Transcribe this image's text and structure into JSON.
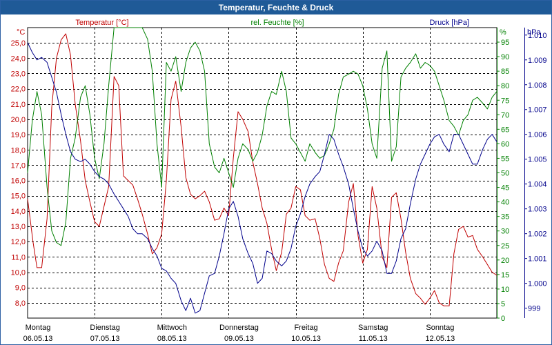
{
  "window": {
    "title": "Temperatur, Feuchte & Druck"
  },
  "colors": {
    "temperature": "#c00000",
    "humidity": "#008000",
    "pressure": "#00008b",
    "titlebar": "#1f5a97"
  },
  "chart_data": {
    "type": "line",
    "x_categories": [
      {
        "day": "Montag",
        "date": "06.05.13"
      },
      {
        "day": "Dienstag",
        "date": "07.05.13"
      },
      {
        "day": "Mittwoch",
        "date": "08.05.13"
      },
      {
        "day": "Donnerstag",
        "date": "09.05.13"
      },
      {
        "day": "Freitag",
        "date": "10.05.13"
      },
      {
        "day": "Samstag",
        "date": "11.05.13"
      },
      {
        "day": "Sonntag",
        "date": "12.05.13"
      }
    ],
    "x_range_days": [
      0,
      7
    ],
    "axes": {
      "temperature": {
        "label": "Temperatur [°C]",
        "unit": "°C",
        "range": [
          7.0,
          26.0
        ],
        "ticks": [
          "8,0",
          "9,0",
          "10,0",
          "11,0",
          "12,0",
          "13,0",
          "14,0",
          "15,0",
          "16,0",
          "17,0",
          "18,0",
          "19,0",
          "20,0",
          "21,0",
          "22,0",
          "23,0",
          "24,0",
          "25,0"
        ]
      },
      "humidity": {
        "label": "rel. Feuchte [%]",
        "unit": "%",
        "range": [
          0,
          100
        ],
        "ticks": [
          "0",
          "5",
          "10",
          "15",
          "20",
          "25",
          "30",
          "35",
          "40",
          "45",
          "50",
          "55",
          "60",
          "65",
          "70",
          "75",
          "80",
          "85",
          "90",
          "95"
        ]
      },
      "pressure": {
        "label": "Druck [hPa]",
        "unit": "hPa",
        "range": [
          998.6,
          1010.3
        ],
        "ticks": [
          "999",
          "1.000",
          "1.001",
          "1.002",
          "1.003",
          "1.004",
          "1.005",
          "1.006",
          "1.007",
          "1.008",
          "1.009",
          "1.010"
        ]
      }
    },
    "grid": true,
    "series": [
      {
        "name": "Temperatur [°C]",
        "axis": "temperature",
        "x": [
          0.0,
          0.08,
          0.14,
          0.21,
          0.29,
          0.36,
          0.43,
          0.5,
          0.57,
          0.64,
          0.71,
          0.79,
          0.86,
          0.93,
          1.0,
          1.07,
          1.14,
          1.21,
          1.29,
          1.36,
          1.43,
          1.5,
          1.57,
          1.64,
          1.71,
          1.79,
          1.86,
          1.93,
          2.0,
          2.07,
          2.14,
          2.21,
          2.29,
          2.36,
          2.43,
          2.5,
          2.57,
          2.64,
          2.71,
          2.79,
          2.86,
          2.93,
          3.0,
          3.07,
          3.14,
          3.21,
          3.29,
          3.36,
          3.43,
          3.5,
          3.57,
          3.64,
          3.71,
          3.79,
          3.86,
          3.93,
          4.0,
          4.07,
          4.14,
          4.21,
          4.29,
          4.36,
          4.43,
          4.5,
          4.57,
          4.64,
          4.71,
          4.79,
          4.86,
          4.93,
          5.0,
          5.07,
          5.14,
          5.21,
          5.29,
          5.36,
          5.43,
          5.5,
          5.57,
          5.64,
          5.71,
          5.79,
          5.86,
          5.93,
          6.0,
          6.07,
          6.14,
          6.21,
          6.29,
          6.36,
          6.43,
          6.5,
          6.57,
          6.64,
          6.71,
          6.79,
          6.86,
          6.93,
          7.0
        ],
        "values": [
          14.8,
          12.0,
          10.3,
          10.3,
          13.5,
          20.8,
          24.0,
          25.2,
          25.6,
          24.2,
          21.0,
          18.6,
          16.0,
          14.6,
          13.3,
          13.0,
          14.3,
          15.6,
          22.8,
          22.2,
          16.3,
          16.0,
          15.7,
          14.8,
          13.8,
          12.5,
          11.2,
          11.6,
          12.5,
          16.0,
          21.3,
          22.5,
          19.5,
          16.2,
          15.1,
          14.8,
          15.0,
          15.3,
          14.6,
          13.4,
          13.5,
          14.2,
          13.7,
          17.5,
          20.5,
          20.0,
          19.2,
          17.2,
          15.8,
          14.2,
          13.2,
          11.5,
          10.1,
          11.3,
          13.8,
          14.2,
          15.6,
          15.4,
          13.7,
          13.4,
          13.5,
          12.2,
          10.5,
          9.6,
          9.4,
          10.6,
          11.4,
          14.6,
          15.8,
          12.4,
          10.6,
          11.5,
          15.6,
          14.2,
          11.0,
          10.3,
          14.9,
          15.2,
          13.5,
          11.3,
          9.6,
          8.6,
          8.3,
          7.9,
          8.3,
          8.8,
          8.0,
          7.8,
          7.8,
          11.2,
          12.8,
          13.0,
          12.3,
          12.4,
          11.5,
          11.0,
          10.5,
          10.0,
          9.8
        ]
      },
      {
        "name": "rel. Feuchte [%]",
        "axis": "humidity",
        "x": [
          0.0,
          0.07,
          0.14,
          0.21,
          0.29,
          0.36,
          0.43,
          0.5,
          0.57,
          0.64,
          0.71,
          0.79,
          0.86,
          0.93,
          1.0,
          1.07,
          1.14,
          1.21,
          1.29,
          1.36,
          1.43,
          1.5,
          1.57,
          1.64,
          1.71,
          1.79,
          1.86,
          1.93,
          2.0,
          2.07,
          2.14,
          2.21,
          2.29,
          2.36,
          2.43,
          2.5,
          2.57,
          2.64,
          2.71,
          2.79,
          2.86,
          2.93,
          3.0,
          3.07,
          3.14,
          3.21,
          3.29,
          3.36,
          3.43,
          3.5,
          3.57,
          3.64,
          3.71,
          3.79,
          3.86,
          3.93,
          4.0,
          4.07,
          4.14,
          4.21,
          4.29,
          4.36,
          4.43,
          4.5,
          4.57,
          4.64,
          4.71,
          4.79,
          4.86,
          4.93,
          5.0,
          5.07,
          5.14,
          5.21,
          5.29,
          5.36,
          5.43,
          5.5,
          5.57,
          5.64,
          5.71,
          5.79,
          5.86,
          5.93,
          6.0,
          6.07,
          6.14,
          6.21,
          6.29,
          6.36,
          6.43,
          6.5,
          6.57,
          6.64,
          6.71,
          6.79,
          6.86,
          6.93,
          7.0
        ],
        "values": [
          50,
          68,
          78,
          70,
          45,
          30,
          26,
          25,
          33,
          55,
          62,
          76,
          80,
          70,
          55,
          48,
          60,
          80,
          100,
          100,
          100,
          100,
          100,
          100,
          100,
          96,
          85,
          60,
          45,
          88,
          85,
          90,
          78,
          88,
          93,
          95,
          92,
          85,
          60,
          52,
          50,
          55,
          50,
          45,
          55,
          60,
          58,
          54,
          57,
          63,
          73,
          78,
          77,
          85,
          78,
          62,
          60,
          57,
          54,
          60,
          57,
          55,
          56,
          60,
          65,
          77,
          83,
          84,
          85,
          84,
          80,
          72,
          60,
          55,
          86,
          92,
          54,
          59,
          83,
          86,
          88,
          91,
          86,
          88,
          87,
          85,
          80,
          75,
          68,
          66,
          63,
          68,
          70,
          75,
          76,
          74,
          72,
          76,
          78
        ]
      },
      {
        "name": "Druck [hPa]",
        "axis": "pressure",
        "x": [
          0.0,
          0.07,
          0.14,
          0.21,
          0.29,
          0.36,
          0.43,
          0.5,
          0.57,
          0.64,
          0.71,
          0.79,
          0.86,
          0.93,
          1.0,
          1.07,
          1.14,
          1.21,
          1.29,
          1.36,
          1.43,
          1.5,
          1.57,
          1.64,
          1.71,
          1.79,
          1.86,
          1.93,
          2.0,
          2.07,
          2.14,
          2.21,
          2.29,
          2.36,
          2.43,
          2.5,
          2.57,
          2.64,
          2.71,
          2.79,
          2.86,
          2.93,
          3.0,
          3.07,
          3.14,
          3.21,
          3.29,
          3.36,
          3.43,
          3.5,
          3.57,
          3.64,
          3.71,
          3.79,
          3.86,
          3.93,
          4.0,
          4.07,
          4.14,
          4.21,
          4.29,
          4.36,
          4.43,
          4.5,
          4.57,
          4.64,
          4.71,
          4.79,
          4.86,
          4.93,
          5.0,
          5.07,
          5.14,
          5.21,
          5.29,
          5.36,
          5.43,
          5.5,
          5.57,
          5.64,
          5.71,
          5.79,
          5.86,
          5.93,
          6.0,
          6.07,
          6.14,
          6.21,
          6.29,
          6.36,
          6.43,
          6.5,
          6.57,
          6.64,
          6.71,
          6.79,
          6.86,
          6.93,
          7.0
        ],
        "values": [
          1009.7,
          1009.3,
          1009.0,
          1009.1,
          1008.9,
          1008.3,
          1007.7,
          1006.8,
          1006.0,
          1005.3,
          1005.0,
          1004.9,
          1005.0,
          1004.8,
          1004.5,
          1004.3,
          1004.2,
          1004.0,
          1003.6,
          1003.3,
          1003.0,
          1002.7,
          1002.2,
          1002.0,
          1002.0,
          1001.8,
          1001.4,
          1001.1,
          1000.6,
          1000.5,
          1000.2,
          1000.0,
          999.3,
          998.9,
          999.4,
          998.8,
          998.9,
          999.6,
          1000.3,
          1000.4,
          1001.1,
          1002.0,
          1003.0,
          1003.3,
          1002.7,
          1001.8,
          1001.2,
          1000.8,
          1000.0,
          1000.2,
          1001.3,
          1001.2,
          1000.9,
          1000.7,
          1000.9,
          1001.4,
          1002.3,
          1002.8,
          1003.5,
          1004.0,
          1004.3,
          1004.5,
          1005.2,
          1006.0,
          1005.8,
          1005.2,
          1004.7,
          1004.0,
          1003.0,
          1002.1,
          1001.4,
          1001.1,
          1001.3,
          1001.7,
          1001.3,
          1000.4,
          1000.4,
          1000.9,
          1001.8,
          1002.2,
          1003.2,
          1004.2,
          1004.8,
          1005.2,
          1005.6,
          1005.9,
          1006.0,
          1005.6,
          1005.3,
          1006.0,
          1006.0,
          1005.6,
          1005.2,
          1004.8,
          1004.8,
          1005.4,
          1005.8,
          1006.0,
          1005.7
        ]
      }
    ]
  }
}
